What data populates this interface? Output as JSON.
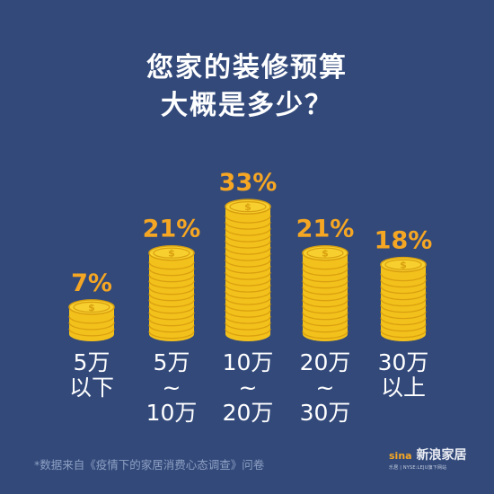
{
  "title_line1": "您家的装修预算",
  "title_line2": "大概是多少？",
  "footnote": "*数据来自《疫情下的家居消费心态调查》问卷",
  "brand": {
    "logo_text": "sina",
    "name": "新浪家居",
    "sub": "乐居 | NYSE:LEJU旗下网站"
  },
  "colors": {
    "background": "#32497a",
    "coin": "#f3c11b",
    "coin_dark": "#d9a010",
    "percent": "#f5a623"
  },
  "chart_data": {
    "type": "bar",
    "title": "您家的装修预算 大概是多少？",
    "categories": [
      [
        "5万",
        "以下"
      ],
      [
        "5万",
        "~",
        "10万"
      ],
      [
        "10万",
        "~",
        "20万"
      ],
      [
        "20万",
        "~",
        "30万"
      ],
      [
        "30万",
        "以上"
      ]
    ],
    "values": [
      7,
      21,
      33,
      21,
      18
    ],
    "value_labels": [
      "7%",
      "21%",
      "33%",
      "21%",
      "18%"
    ],
    "unit": "%"
  }
}
